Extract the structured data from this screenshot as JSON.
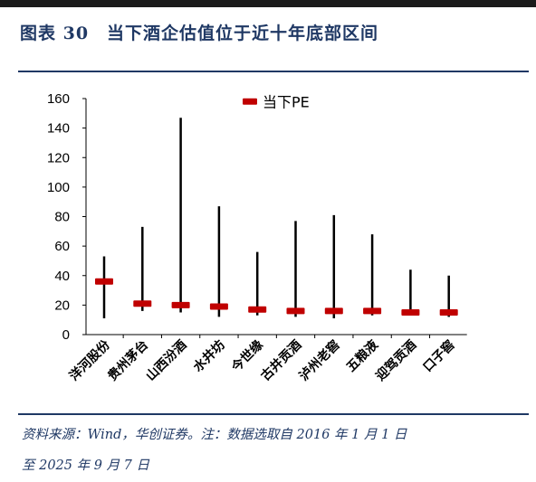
{
  "header": {
    "title": "图表 30　当下酒企估值位于近十年底部区间"
  },
  "footer": {
    "source_line1": "资料来源：Wind，华创证券。注：数据选取自 2016 年 1 月 1 日",
    "source_line2": "至 2025 年 9 月 7 日"
  },
  "chart_data": {
    "type": "bar",
    "title": "",
    "xlabel": "",
    "ylabel": "",
    "ylim": [
      0,
      160
    ],
    "yticks": [
      0,
      20,
      40,
      60,
      80,
      100,
      120,
      140,
      160
    ],
    "grid": false,
    "legend_position": "top-center",
    "categories": [
      "洋河股份",
      "贵州茅台",
      "山西汾酒",
      "水井坊",
      "今世缘",
      "古井贡酒",
      "泸州老窖",
      "五粮液",
      "迎驾贡酒",
      "口子窖"
    ],
    "series": [
      {
        "name": "当下PE",
        "values": [
          36,
          21,
          20,
          19,
          17,
          16,
          16,
          16,
          15,
          15
        ]
      }
    ],
    "range_low": [
      11,
      16,
      15,
      12,
      13,
      12,
      11,
      13,
      13,
      12
    ],
    "range_high": [
      53,
      73,
      147,
      87,
      56,
      77,
      81,
      68,
      44,
      40
    ],
    "colors": {
      "marker": "#c00000",
      "range_line": "#000000",
      "axis": "#000000"
    }
  }
}
